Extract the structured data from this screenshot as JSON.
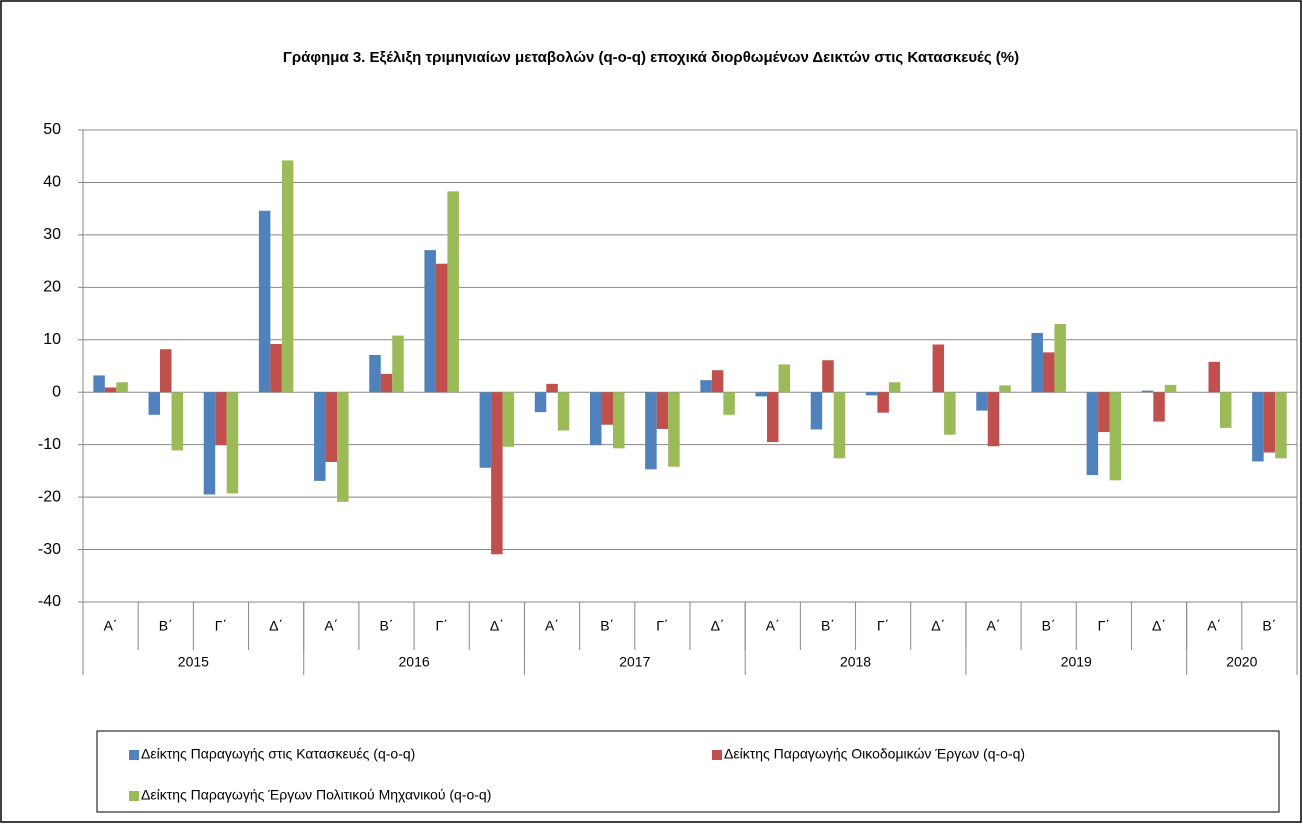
{
  "chart_data": {
    "type": "bar",
    "title": "Γράφημα 3. Εξέλιξη τριμηνιαίων μεταβολών (q-o-q) εποχικά διορθωμένων Δεικτών  στις Κατασκευές (%)",
    "categories": [
      "Α΄",
      "Β΄",
      "Γ΄",
      "Δ΄",
      "Α΄",
      "Β΄",
      "Γ΄",
      "Δ΄",
      "Α΄",
      "Β΄",
      "Γ΄",
      "Δ΄",
      "Α΄",
      "Β΄",
      "Γ΄",
      "Δ΄",
      "Α΄",
      "Β΄",
      "Γ΄",
      "Δ΄",
      "Α΄",
      "Β΄"
    ],
    "groups": [
      {
        "label": "2015",
        "size": 4
      },
      {
        "label": "2016",
        "size": 4
      },
      {
        "label": "2017",
        "size": 4
      },
      {
        "label": "2018",
        "size": 4
      },
      {
        "label": "2019",
        "size": 4
      },
      {
        "label": "2020",
        "size": 2
      }
    ],
    "series": [
      {
        "name": "Δείκτης Παραγωγής στις Κατασκευές (q-o-q)",
        "color": "#4f81bd",
        "values": [
          3.2,
          -4.3,
          -19.5,
          34.6,
          -16.9,
          7.1,
          27.1,
          -14.4,
          -3.8,
          -10.1,
          -14.7,
          2.3,
          -0.8,
          -7.1,
          -0.6,
          0,
          -3.5,
          11.3,
          -15.8,
          0.3,
          0,
          -13.2
        ]
      },
      {
        "name": "Δείκτης Παραγωγής Οικοδομικών Έργων (q-o-q)",
        "color": "#c0504d",
        "values": [
          0.9,
          8.2,
          -10.1,
          9.2,
          -13.3,
          3.5,
          24.5,
          -30.9,
          1.6,
          -6.2,
          -7.0,
          4.2,
          -9.5,
          6.1,
          -3.9,
          9.1,
          -10.3,
          7.6,
          -7.6,
          -5.6,
          5.8,
          -11.5
        ]
      },
      {
        "name": "Δείκτης Παραγωγής Έργων Πολιτικού Μηχανικού (q-o-q)",
        "color": "#9bbb59",
        "values": [
          1.9,
          -11.1,
          -19.3,
          44.2,
          -20.9,
          10.8,
          38.3,
          -10.4,
          -7.3,
          -10.7,
          -14.2,
          -4.3,
          5.3,
          -12.6,
          1.9,
          -8.1,
          1.3,
          13.0,
          -16.8,
          1.4,
          -6.8,
          -12.6
        ]
      }
    ],
    "ylim": [
      -40,
      50
    ],
    "yticks": [
      -40,
      -30,
      -20,
      -10,
      0,
      10,
      20,
      30,
      40,
      50
    ],
    "grid": true
  }
}
